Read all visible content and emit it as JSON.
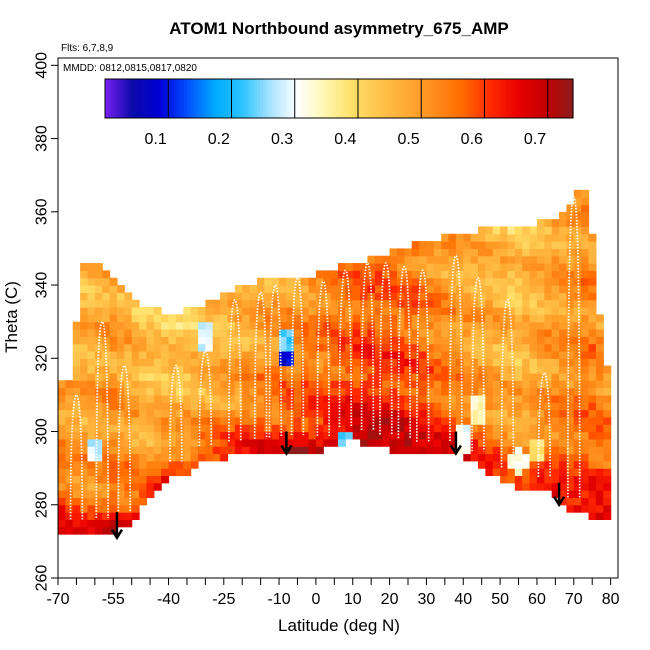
{
  "chart_data": {
    "type": "heatmap",
    "title": "ATOM1 Northbound asymmetry_675_AMP",
    "flights_label": "Flts: 6,7,8,9",
    "dates_label": "MMDD: 0812,0815,0817,0820",
    "xlabel": "Latitude (deg N)",
    "ylabel": "Theta (C)",
    "xlim": [
      -70,
      82
    ],
    "ylim": [
      260,
      402
    ],
    "x_ticks": [
      -70,
      -55,
      -40,
      -25,
      -10,
      0,
      10,
      20,
      30,
      40,
      50,
      60,
      70,
      80
    ],
    "x_minor_step": 5,
    "y_ticks": [
      260,
      280,
      300,
      320,
      340,
      360,
      380,
      400
    ],
    "colorbar": {
      "range": [
        0.02,
        0.76
      ],
      "ticks": [
        0.1,
        0.2,
        0.3,
        0.4,
        0.5,
        0.6,
        0.7
      ],
      "colors": [
        "#7a1ff2",
        "#0a0aa8",
        "#0000d8",
        "#0050ff",
        "#00aaff",
        "#2cc3ff",
        "#a8e3ff",
        "#ffffff",
        "#fff6b0",
        "#ffe066",
        "#ffc24a",
        "#ffaa33",
        "#ff8c1a",
        "#ff6a00",
        "#ff2a00",
        "#e80000",
        "#c40000",
        "#8c1c1c"
      ],
      "breaks": [
        0.12,
        0.22,
        0.32,
        0.42,
        0.52,
        0.62,
        0.72
      ]
    },
    "bottom_boundary": [
      [
        -70,
        272
      ],
      [
        -60,
        272
      ],
      [
        -55,
        273
      ],
      [
        -50,
        275
      ],
      [
        -45,
        282
      ],
      [
        -40,
        287
      ],
      [
        -35,
        289
      ],
      [
        -30,
        292
      ],
      [
        -25,
        293
      ],
      [
        -15,
        294
      ],
      [
        -5,
        295
      ],
      [
        0,
        294
      ],
      [
        5,
        296
      ],
      [
        10,
        298
      ],
      [
        15,
        296
      ],
      [
        20,
        295
      ],
      [
        25,
        294
      ],
      [
        30,
        293
      ],
      [
        35,
        294
      ],
      [
        40,
        293
      ],
      [
        45,
        290
      ],
      [
        50,
        287
      ],
      [
        55,
        285
      ],
      [
        60,
        284
      ],
      [
        65,
        283
      ],
      [
        70,
        278
      ],
      [
        75,
        277
      ],
      [
        80,
        277
      ]
    ],
    "top_boundary": [
      [
        -70,
        314
      ],
      [
        -66,
        314
      ],
      [
        -64,
        346
      ],
      [
        -60,
        346
      ],
      [
        -50,
        336
      ],
      [
        -40,
        332
      ],
      [
        -30,
        335
      ],
      [
        -20,
        340
      ],
      [
        -10,
        342
      ],
      [
        0,
        343
      ],
      [
        10,
        346
      ],
      [
        20,
        349
      ],
      [
        30,
        352
      ],
      [
        40,
        354
      ],
      [
        50,
        356
      ],
      [
        60,
        357
      ],
      [
        68,
        360
      ],
      [
        70,
        364
      ],
      [
        72,
        368
      ],
      [
        74,
        363
      ],
      [
        76,
        345
      ],
      [
        78,
        320
      ],
      [
        80,
        315
      ]
    ],
    "mean_trend": [
      [
        -70,
        0.56
      ],
      [
        -62,
        0.52
      ],
      [
        -55,
        0.55
      ],
      [
        -45,
        0.5
      ],
      [
        -35,
        0.49
      ],
      [
        -25,
        0.51
      ],
      [
        -15,
        0.55
      ],
      [
        -5,
        0.57
      ],
      [
        5,
        0.6
      ],
      [
        15,
        0.63
      ],
      [
        25,
        0.62
      ],
      [
        35,
        0.56
      ],
      [
        45,
        0.53
      ],
      [
        55,
        0.5
      ],
      [
        65,
        0.55
      ],
      [
        75,
        0.58
      ],
      [
        80,
        0.57
      ]
    ],
    "arrows": [
      {
        "lat": -54,
        "theta_top": 278,
        "theta_tip": 271
      },
      {
        "lat": -8,
        "theta_top": 300,
        "theta_tip": 294
      },
      {
        "lat": 38,
        "theta_top": 300,
        "theta_tip": 294
      },
      {
        "lat": 66,
        "theta_top": 286,
        "theta_tip": 280
      }
    ],
    "white_trace_peaks": [
      {
        "lat": -65,
        "theta": 310
      },
      {
        "lat": -58,
        "theta": 330
      },
      {
        "lat": -52,
        "theta": 318
      },
      {
        "lat": -38,
        "theta": 318
      },
      {
        "lat": -30,
        "theta": 322
      },
      {
        "lat": -22,
        "theta": 336
      },
      {
        "lat": -15,
        "theta": 338
      },
      {
        "lat": -11,
        "theta": 340
      },
      {
        "lat": -5,
        "theta": 342
      },
      {
        "lat": 2,
        "theta": 341
      },
      {
        "lat": 8,
        "theta": 344
      },
      {
        "lat": 14,
        "theta": 346
      },
      {
        "lat": 19,
        "theta": 346
      },
      {
        "lat": 24,
        "theta": 345
      },
      {
        "lat": 29,
        "theta": 344
      },
      {
        "lat": 38,
        "theta": 348
      },
      {
        "lat": 44,
        "theta": 342
      },
      {
        "lat": 52,
        "theta": 336
      },
      {
        "lat": 62,
        "theta": 316
      },
      {
        "lat": 70,
        "theta": 364
      }
    ],
    "anomalies": [
      {
        "lat": -8,
        "theta": 322,
        "value": 0.1
      },
      {
        "lat": -8,
        "theta": 325,
        "value": 0.25
      },
      {
        "lat": -60,
        "theta": 295,
        "value": 0.3
      },
      {
        "lat": 40,
        "theta": 298,
        "value": 0.33
      },
      {
        "lat": 44,
        "theta": 306,
        "value": 0.36
      },
      {
        "lat": -30,
        "theta": 326,
        "value": 0.3
      },
      {
        "lat": 55,
        "theta": 292,
        "value": 0.35
      },
      {
        "lat": 8,
        "theta": 296,
        "value": 0.25
      },
      {
        "lat": 60,
        "theta": 295,
        "value": 0.4
      }
    ]
  }
}
